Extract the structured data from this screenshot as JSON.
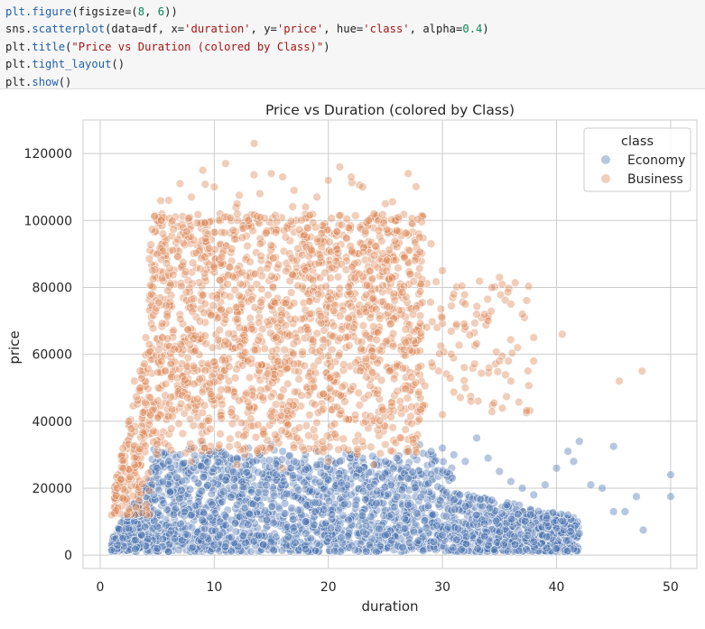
{
  "code_cell": {
    "lines": [
      [
        [
          "fn",
          "plt.figure"
        ],
        [
          "plain",
          "(figsize=("
        ],
        [
          "num",
          "8"
        ],
        [
          "plain",
          ", "
        ],
        [
          "num",
          "6"
        ],
        [
          "plain",
          "))"
        ]
      ],
      [
        [
          "plain",
          "sns."
        ],
        [
          "fn",
          "scatterplot"
        ],
        [
          "plain",
          "(data=df, x="
        ],
        [
          "str",
          "'duration'"
        ],
        [
          "plain",
          ", y="
        ],
        [
          "str",
          "'price'"
        ],
        [
          "plain",
          ", hue="
        ],
        [
          "str",
          "'class'"
        ],
        [
          "plain",
          ", alpha="
        ],
        [
          "num",
          "0.4"
        ],
        [
          "plain",
          ")"
        ]
      ],
      [
        [
          "plain",
          "plt."
        ],
        [
          "fn",
          "title"
        ],
        [
          "plain",
          "("
        ],
        [
          "str",
          "\"Price vs Duration (colored by Class)\""
        ],
        [
          "plain",
          ")"
        ]
      ],
      [
        [
          "plain",
          "plt."
        ],
        [
          "fn",
          "tight_layout"
        ],
        [
          "plain",
          "()"
        ]
      ],
      [
        [
          "plain",
          "plt."
        ],
        [
          "fn",
          "show"
        ],
        [
          "plain",
          "()"
        ]
      ]
    ]
  },
  "chart_data": {
    "type": "scatter",
    "title": "Price vs Duration (colored by Class)",
    "xlabel": "duration",
    "ylabel": "price",
    "xlim": [
      -1.5,
      52.3
    ],
    "ylim": [
      -4000,
      130000
    ],
    "xticks": [
      0,
      10,
      20,
      30,
      40,
      50
    ],
    "yticks": [
      0,
      20000,
      40000,
      60000,
      80000,
      100000,
      120000
    ],
    "xtick_labels": [
      "0",
      "10",
      "20",
      "30",
      "40",
      "50"
    ],
    "ytick_labels": [
      "0",
      "20000",
      "40000",
      "60000",
      "80000",
      "100000",
      "120000"
    ],
    "grid": true,
    "alpha": 0.4,
    "legend": {
      "title": "class",
      "placement": "top-right"
    },
    "series": [
      {
        "name": "Economy",
        "color": "#4c72b0",
        "points": [
          [
            1.0,
            1500
          ],
          [
            1.5,
            3000
          ],
          [
            2.0,
            5000
          ],
          [
            2.5,
            8000
          ],
          [
            3.0,
            12000
          ],
          [
            3.5,
            15000
          ],
          [
            4.0,
            20000
          ],
          [
            4.5,
            25000
          ],
          [
            5.0,
            26000
          ],
          [
            5.5,
            22000
          ],
          [
            6.0,
            28000
          ],
          [
            7.0,
            30000
          ],
          [
            8.0,
            32000
          ],
          [
            9.0,
            33000
          ],
          [
            10.0,
            31000
          ],
          [
            11.0,
            30000
          ],
          [
            12.0,
            29000
          ],
          [
            13.0,
            32000
          ],
          [
            14.0,
            30000
          ],
          [
            15.0,
            33000
          ],
          [
            16.0,
            31000
          ],
          [
            17.0,
            28000
          ],
          [
            18.0,
            30000
          ],
          [
            19.0,
            27000
          ],
          [
            20.0,
            29000
          ],
          [
            21.0,
            28000
          ],
          [
            22.0,
            30000
          ],
          [
            23.0,
            29000
          ],
          [
            24.0,
            27000
          ],
          [
            25.0,
            28000
          ],
          [
            26.0,
            29000
          ],
          [
            27.0,
            31000
          ],
          [
            28.0,
            33000
          ],
          [
            29.0,
            31000
          ],
          [
            30.0,
            32000
          ],
          [
            31.0,
            30000
          ],
          [
            32.0,
            28000
          ],
          [
            33.0,
            35000
          ],
          [
            34.0,
            29000
          ],
          [
            35.0,
            25000
          ],
          [
            36.0,
            22000
          ],
          [
            37.0,
            20000
          ],
          [
            38.0,
            18000
          ],
          [
            39.0,
            21000
          ],
          [
            40.0,
            26000
          ],
          [
            41.0,
            31000
          ],
          [
            41.5,
            28000
          ],
          [
            42.0,
            34000
          ],
          [
            45.0,
            32500
          ],
          [
            46.0,
            13000
          ],
          [
            47.0,
            17500
          ],
          [
            47.6,
            7500
          ],
          [
            50.0,
            24000
          ],
          [
            50.0,
            17500
          ],
          [
            5.0,
            2000
          ],
          [
            10.0,
            3000
          ],
          [
            15.0,
            4000
          ],
          [
            20.0,
            5000
          ],
          [
            25.0,
            6000
          ],
          [
            30.0,
            6000
          ],
          [
            35.0,
            7000
          ],
          [
            40.0,
            8000
          ],
          [
            42.0,
            6500
          ],
          [
            38.0,
            4000
          ],
          [
            41.0,
            12000
          ],
          [
            43.0,
            21000
          ],
          [
            44.0,
            20000
          ],
          [
            45.0,
            13000
          ],
          [
            8.0,
            12000
          ],
          [
            12.0,
            15000
          ],
          [
            18.0,
            10000
          ],
          [
            22.0,
            18000
          ],
          [
            27.0,
            15000
          ],
          [
            33.0,
            12000
          ]
        ]
      },
      {
        "name": "Business",
        "color": "#dd8452",
        "points": [
          [
            1.0,
            12000
          ],
          [
            1.5,
            20000
          ],
          [
            2.0,
            26000
          ],
          [
            2.5,
            40000
          ],
          [
            3.0,
            52000
          ],
          [
            3.5,
            55000
          ],
          [
            4.0,
            65000
          ],
          [
            4.5,
            78000
          ],
          [
            5.0,
            90000
          ],
          [
            5.5,
            96000
          ],
          [
            6.0,
            106000
          ],
          [
            7.0,
            111000
          ],
          [
            8.0,
            107000
          ],
          [
            9.0,
            115000
          ],
          [
            10.0,
            110000
          ],
          [
            11.0,
            117000
          ],
          [
            12.0,
            105000
          ],
          [
            13.0,
            100000
          ],
          [
            13.5,
            123000
          ],
          [
            14.0,
            108000
          ],
          [
            15.0,
            114000
          ],
          [
            16.0,
            113000
          ],
          [
            17.0,
            109000
          ],
          [
            18.0,
            104000
          ],
          [
            19.0,
            107000
          ],
          [
            20.0,
            112000
          ],
          [
            21.0,
            116000
          ],
          [
            22.0,
            113000
          ],
          [
            23.0,
            110000
          ],
          [
            24.0,
            102000
          ],
          [
            25.0,
            105000
          ],
          [
            26.0,
            97000
          ],
          [
            27.0,
            114000
          ],
          [
            28.0,
            95000
          ],
          [
            29.0,
            93000
          ],
          [
            30.0,
            85000
          ],
          [
            31.0,
            78000
          ],
          [
            32.0,
            75000
          ],
          [
            33.0,
            72000
          ],
          [
            34.0,
            70000
          ],
          [
            35.0,
            83000
          ],
          [
            36.0,
            75000
          ],
          [
            37.0,
            72000
          ],
          [
            38.0,
            65000
          ],
          [
            38.0,
            58000
          ],
          [
            40.5,
            66000
          ],
          [
            45.5,
            52000
          ],
          [
            47.5,
            55000
          ],
          [
            2.0,
            17000
          ],
          [
            3.0,
            27000
          ],
          [
            5.0,
            30000
          ],
          [
            8.0,
            28000
          ],
          [
            12.0,
            27000
          ],
          [
            16.0,
            26000
          ],
          [
            20.0,
            28000
          ],
          [
            24.0,
            27000
          ],
          [
            27.0,
            31000
          ],
          [
            30.0,
            42000
          ],
          [
            32.0,
            50000
          ],
          [
            35.0,
            58000
          ],
          [
            36.0,
            52000
          ],
          [
            37.5,
            55000
          ]
        ]
      }
    ]
  }
}
